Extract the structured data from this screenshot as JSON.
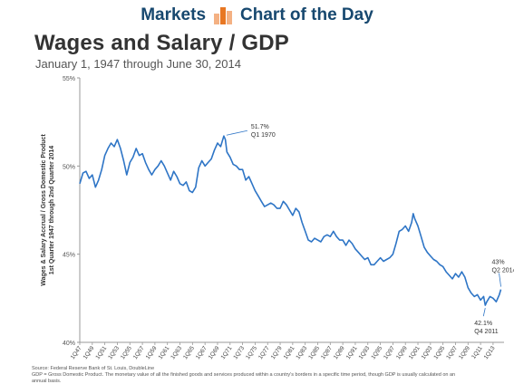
{
  "banner": {
    "left_text": "Markets",
    "right_text": "Chart of the Day",
    "colors": {
      "text": "#17486f",
      "logo_light": "#f4b183",
      "logo_dark": "#e87722"
    }
  },
  "chart_data": {
    "type": "line",
    "title": "Wages and Salary / GDP",
    "subtitle": "January 1, 1947 through June 30, 2014",
    "ylabel": "Wages & Salary Accrual / Gross Domestic Product\n1st Quarter 1947 through 2nd Quarter 2014",
    "xlabel": "",
    "ylim": [
      40,
      55
    ],
    "yticks": [
      "40%",
      "45%",
      "50%",
      "55%"
    ],
    "ytick_values": [
      40,
      45,
      50,
      55
    ],
    "xticks": [
      "1Q47",
      "1Q49",
      "1Q51",
      "1Q53",
      "1Q55",
      "1Q57",
      "1Q59",
      "1Q61",
      "1Q63",
      "1Q65",
      "1Q67",
      "1Q69",
      "1Q71",
      "1Q73",
      "1Q75",
      "1Q77",
      "1Q79",
      "1Q81",
      "1Q83",
      "1Q85",
      "1Q87",
      "1Q89",
      "1Q91",
      "1Q93",
      "1Q95",
      "1Q97",
      "1Q99",
      "1Q01",
      "1Q03",
      "1Q05",
      "1Q07",
      "1Q09",
      "1Q11",
      "1Q13"
    ],
    "line_color": "#2e75c6",
    "grid": false,
    "series": [
      {
        "x": [
          1947.0,
          1947.5,
          1948.0,
          1948.5,
          1949.0,
          1949.5,
          1950.0,
          1950.5,
          1951.0,
          1951.5,
          1952.0,
          1952.5,
          1953.0,
          1953.5,
          1954.0,
          1954.5,
          1955.0,
          1955.5,
          1956.0,
          1956.5,
          1957.0,
          1957.5,
          1958.0,
          1958.5,
          1959.0,
          1959.5,
          1960.0,
          1960.5,
          1961.0,
          1961.5,
          1962.0,
          1962.5,
          1963.0,
          1963.5,
          1964.0,
          1964.5,
          1965.0,
          1965.5,
          1966.0,
          1966.5,
          1967.0,
          1967.5,
          1968.0,
          1968.5,
          1969.0,
          1969.5,
          1970.0,
          1970.25,
          1970.5,
          1971.0,
          1971.5,
          1972.0,
          1972.5,
          1973.0,
          1973.5,
          1974.0,
          1974.5,
          1975.0,
          1975.5,
          1976.0,
          1976.5,
          1977.0,
          1977.5,
          1978.0,
          1978.5,
          1979.0,
          1979.5,
          1980.0,
          1980.5,
          1981.0,
          1981.5,
          1982.0,
          1982.5,
          1983.0,
          1983.5,
          1984.0,
          1984.5,
          1985.0,
          1985.5,
          1986.0,
          1986.5,
          1987.0,
          1987.5,
          1988.0,
          1988.5,
          1989.0,
          1989.5,
          1990.0,
          1990.5,
          1991.0,
          1991.5,
          1992.0,
          1992.5,
          1993.0,
          1993.5,
          1994.0,
          1994.5,
          1995.0,
          1995.5,
          1996.0,
          1996.5,
          1997.0,
          1997.5,
          1998.0,
          1998.5,
          1999.0,
          1999.5,
          2000.0,
          2000.25,
          2000.5,
          2001.0,
          2001.5,
          2002.0,
          2002.5,
          2003.0,
          2003.5,
          2004.0,
          2004.5,
          2005.0,
          2005.5,
          2006.0,
          2006.5,
          2007.0,
          2007.5,
          2008.0,
          2008.5,
          2009.0,
          2009.5,
          2010.0,
          2010.5,
          2011.0,
          2011.5,
          2011.75,
          2012.0,
          2012.5,
          2013.0,
          2013.5,
          2014.0,
          2014.25
        ],
        "y": [
          49.0,
          49.6,
          49.7,
          49.3,
          49.5,
          48.8,
          49.2,
          49.8,
          50.6,
          51.0,
          51.3,
          51.1,
          51.5,
          51.0,
          50.3,
          49.5,
          50.2,
          50.5,
          51.0,
          50.6,
          50.7,
          50.2,
          49.8,
          49.5,
          49.8,
          50.0,
          50.3,
          50.0,
          49.6,
          49.2,
          49.7,
          49.4,
          49.0,
          48.9,
          49.1,
          48.6,
          48.5,
          48.8,
          49.9,
          50.3,
          50.0,
          50.2,
          50.4,
          50.9,
          51.3,
          51.1,
          51.7,
          51.5,
          50.8,
          50.5,
          50.1,
          50.0,
          49.8,
          49.8,
          49.2,
          49.4,
          49.0,
          48.6,
          48.3,
          48.0,
          47.7,
          47.8,
          47.9,
          47.8,
          47.6,
          47.6,
          48.0,
          47.8,
          47.5,
          47.2,
          47.6,
          47.4,
          46.8,
          46.3,
          45.8,
          45.7,
          45.9,
          45.8,
          45.7,
          46.0,
          46.1,
          46.0,
          46.3,
          46.0,
          45.8,
          45.8,
          45.5,
          45.8,
          45.6,
          45.3,
          45.1,
          44.9,
          44.7,
          44.8,
          44.4,
          44.4,
          44.6,
          44.8,
          44.6,
          44.7,
          44.8,
          45.0,
          45.6,
          46.3,
          46.4,
          46.6,
          46.3,
          46.8,
          47.3,
          47.0,
          46.6,
          46.0,
          45.4,
          45.1,
          44.9,
          44.7,
          44.6,
          44.4,
          44.3,
          44.0,
          43.8,
          43.6,
          43.9,
          43.7,
          44.0,
          43.7,
          43.1,
          42.8,
          42.6,
          42.7,
          42.4,
          42.6,
          42.1,
          42.3,
          42.6,
          42.5,
          42.3,
          42.7,
          43.0
        ]
      }
    ],
    "annotations": [
      {
        "x": 1970.0,
        "y": 51.7,
        "lines": [
          "51.7%",
          "Q1 1970"
        ],
        "pos": "right"
      },
      {
        "x": 2014.25,
        "y": 43.0,
        "lines": [
          "43%",
          "Q2 2014"
        ],
        "pos": "above"
      },
      {
        "x": 2011.75,
        "y": 42.1,
        "lines": [
          "42.1%",
          "Q4 2011"
        ],
        "pos": "below"
      }
    ]
  },
  "footnotes": {
    "source": "Source: Federal Reserve Bank of St. Louis, DoubleLine",
    "gdp_note": "GDP = Gross Domestic Product. The monetary value of all the finished goods and services produced within a country's borders in a specific time period, though GDP is usually calculated on an",
    "gdp_note_2": "annual basis."
  }
}
